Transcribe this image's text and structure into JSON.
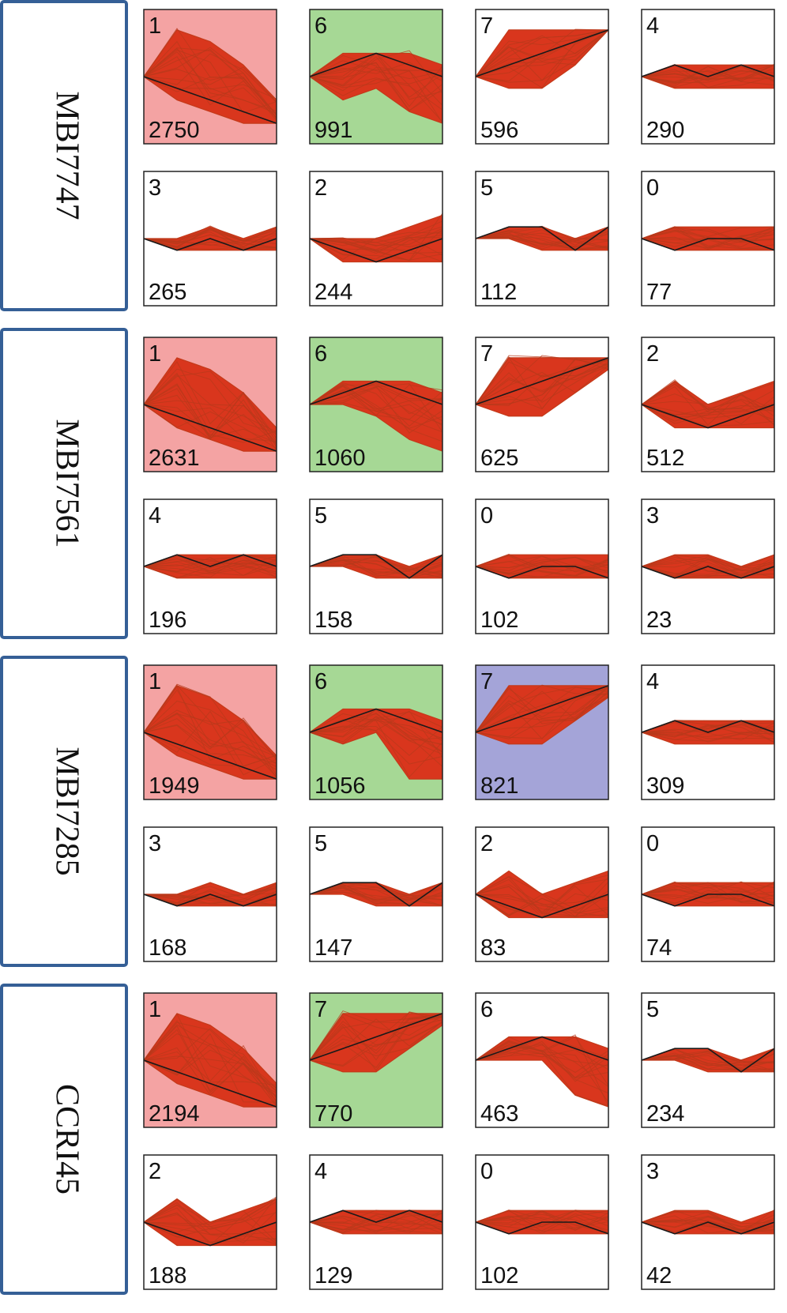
{
  "chart_data": {
    "type": "line",
    "description_note": "",
    "colors": {
      "profile": "#d9361d",
      "profile_line": "#c43a1a",
      "model_line": "#1a1a1a",
      "panel_border": "#222222",
      "group_border": "#355f96",
      "highlight_red": "#f4a3a3",
      "highlight_green": "#a6d895",
      "highlight_blue": "#a4a4d8",
      "background": "#ffffff"
    },
    "groups": [
      {
        "label": "MBI7747",
        "panels": [
          {
            "profile_id": "1",
            "gene_count": "2750",
            "highlight": "red",
            "model": [
              0,
              -1,
              -2,
              -3,
              -4
            ],
            "band_top": [
              0,
              4,
              3,
              1,
              -2
            ],
            "band_bottom": [
              0,
              -2,
              -3,
              -4,
              -4
            ]
          },
          {
            "profile_id": "6",
            "gene_count": "991",
            "highlight": "green",
            "model": [
              0,
              1,
              2,
              1,
              0
            ],
            "band_top": [
              0,
              2,
              2,
              2,
              1
            ],
            "band_bottom": [
              0,
              -2,
              -1,
              -3,
              -4
            ]
          },
          {
            "profile_id": "7",
            "gene_count": "596",
            "highlight": "none",
            "model": [
              0,
              1,
              2,
              3,
              4
            ],
            "band_top": [
              0,
              4,
              4,
              4,
              4
            ],
            "band_bottom": [
              0,
              -1,
              -1,
              1,
              4
            ]
          },
          {
            "profile_id": "4",
            "gene_count": "290",
            "highlight": "none",
            "model": [
              0,
              1,
              0,
              1,
              0
            ],
            "band_top": [
              0,
              1,
              1,
              1,
              1
            ],
            "band_bottom": [
              0,
              -1,
              -1,
              -1,
              -1
            ]
          },
          {
            "profile_id": "3",
            "gene_count": "265",
            "highlight": "none",
            "model": [
              0,
              -1,
              0,
              -1,
              0
            ],
            "band_top": [
              0,
              0,
              1,
              0,
              1
            ],
            "band_bottom": [
              0,
              -1,
              -1,
              -1,
              -1
            ]
          },
          {
            "profile_id": "2",
            "gene_count": "244",
            "highlight": "none",
            "model": [
              0,
              -1,
              -2,
              -1,
              0
            ],
            "band_top": [
              0,
              0,
              0,
              1,
              2
            ],
            "band_bottom": [
              0,
              -2,
              -2,
              -2,
              -2
            ]
          },
          {
            "profile_id": "5",
            "gene_count": "112",
            "highlight": "none",
            "model": [
              0,
              1,
              1,
              -1,
              1
            ],
            "band_top": [
              0,
              1,
              1,
              0,
              1
            ],
            "band_bottom": [
              0,
              0,
              -1,
              -1,
              -1
            ]
          },
          {
            "profile_id": "0",
            "gene_count": "77",
            "highlight": "none",
            "model": [
              0,
              -1,
              0,
              0,
              -1
            ],
            "band_top": [
              0,
              1,
              1,
              1,
              1
            ],
            "band_bottom": [
              0,
              -1,
              -1,
              -1,
              -1
            ]
          }
        ]
      },
      {
        "label": "MBI7561",
        "panels": [
          {
            "profile_id": "1",
            "gene_count": "2631",
            "highlight": "red",
            "model": [
              0,
              -1,
              -2,
              -3,
              -4
            ],
            "band_top": [
              0,
              4,
              3,
              1,
              -2
            ],
            "band_bottom": [
              0,
              -2,
              -3,
              -4,
              -4
            ]
          },
          {
            "profile_id": "6",
            "gene_count": "1060",
            "highlight": "green",
            "model": [
              0,
              1,
              2,
              1,
              0
            ],
            "band_top": [
              0,
              2,
              2,
              2,
              1
            ],
            "band_bottom": [
              0,
              0,
              -1,
              -3,
              -4
            ]
          },
          {
            "profile_id": "7",
            "gene_count": "625",
            "highlight": "none",
            "model": [
              0,
              1,
              2,
              3,
              4
            ],
            "band_top": [
              0,
              4,
              4,
              4,
              4
            ],
            "band_bottom": [
              0,
              -1,
              -1,
              1,
              3
            ]
          },
          {
            "profile_id": "2",
            "gene_count": "512",
            "highlight": "none",
            "model": [
              0,
              -1,
              -2,
              -1,
              0
            ],
            "band_top": [
              0,
              2,
              0,
              1,
              2
            ],
            "band_bottom": [
              0,
              -2,
              -2,
              -2,
              -2
            ]
          },
          {
            "profile_id": "4",
            "gene_count": "196",
            "highlight": "none",
            "model": [
              0,
              1,
              0,
              1,
              0
            ],
            "band_top": [
              0,
              1,
              1,
              1,
              1
            ],
            "band_bottom": [
              0,
              -1,
              -1,
              -1,
              -1
            ]
          },
          {
            "profile_id": "5",
            "gene_count": "158",
            "highlight": "none",
            "model": [
              0,
              1,
              1,
              -1,
              1
            ],
            "band_top": [
              0,
              1,
              1,
              0,
              1
            ],
            "band_bottom": [
              0,
              0,
              -1,
              -1,
              -1
            ]
          },
          {
            "profile_id": "0",
            "gene_count": "102",
            "highlight": "none",
            "model": [
              0,
              -1,
              0,
              0,
              -1
            ],
            "band_top": [
              0,
              1,
              1,
              1,
              1
            ],
            "band_bottom": [
              0,
              -1,
              -1,
              -1,
              -1
            ]
          },
          {
            "profile_id": "3",
            "gene_count": "23",
            "highlight": "none",
            "model": [
              0,
              -1,
              0,
              -1,
              0
            ],
            "band_top": [
              0,
              1,
              1,
              0,
              1
            ],
            "band_bottom": [
              0,
              -1,
              -1,
              -1,
              -1
            ]
          }
        ]
      },
      {
        "label": "MBI7285",
        "panels": [
          {
            "profile_id": "1",
            "gene_count": "1949",
            "highlight": "red",
            "model": [
              0,
              -1,
              -2,
              -3,
              -4
            ],
            "band_top": [
              0,
              4,
              3,
              1,
              -2
            ],
            "band_bottom": [
              0,
              -2,
              -3,
              -4,
              -4
            ]
          },
          {
            "profile_id": "6",
            "gene_count": "1056",
            "highlight": "green",
            "model": [
              0,
              1,
              2,
              1,
              0
            ],
            "band_top": [
              0,
              2,
              2,
              2,
              1
            ],
            "band_bottom": [
              0,
              -1,
              0,
              -4,
              -4
            ]
          },
          {
            "profile_id": "7",
            "gene_count": "821",
            "highlight": "blue",
            "model": [
              0,
              1,
              2,
              3,
              4
            ],
            "band_top": [
              0,
              4,
              4,
              4,
              4
            ],
            "band_bottom": [
              0,
              -1,
              -1,
              1,
              3
            ]
          },
          {
            "profile_id": "4",
            "gene_count": "309",
            "highlight": "none",
            "model": [
              0,
              1,
              0,
              1,
              0
            ],
            "band_top": [
              0,
              1,
              1,
              1,
              1
            ],
            "band_bottom": [
              0,
              -1,
              -1,
              -1,
              -1
            ]
          },
          {
            "profile_id": "3",
            "gene_count": "168",
            "highlight": "none",
            "model": [
              0,
              -1,
              0,
              -1,
              0
            ],
            "band_top": [
              0,
              0,
              1,
              0,
              1
            ],
            "band_bottom": [
              0,
              -1,
              -1,
              -1,
              -1
            ]
          },
          {
            "profile_id": "5",
            "gene_count": "147",
            "highlight": "none",
            "model": [
              0,
              1,
              1,
              -1,
              1
            ],
            "band_top": [
              0,
              1,
              1,
              0,
              1
            ],
            "band_bottom": [
              0,
              0,
              -1,
              -1,
              -1
            ]
          },
          {
            "profile_id": "2",
            "gene_count": "83",
            "highlight": "none",
            "model": [
              0,
              -1,
              -2,
              -1,
              0
            ],
            "band_top": [
              0,
              2,
              0,
              1,
              2
            ],
            "band_bottom": [
              0,
              -2,
              -2,
              -2,
              -2
            ]
          },
          {
            "profile_id": "0",
            "gene_count": "74",
            "highlight": "none",
            "model": [
              0,
              -1,
              0,
              0,
              -1
            ],
            "band_top": [
              0,
              1,
              1,
              1,
              1
            ],
            "band_bottom": [
              0,
              -1,
              -1,
              -1,
              -1
            ]
          }
        ]
      },
      {
        "label": "CCRI45",
        "panels": [
          {
            "profile_id": "1",
            "gene_count": "2194",
            "highlight": "red",
            "model": [
              0,
              -1,
              -2,
              -3,
              -4
            ],
            "band_top": [
              0,
              4,
              3,
              1,
              -2
            ],
            "band_bottom": [
              0,
              -2,
              -3,
              -4,
              -4
            ]
          },
          {
            "profile_id": "7",
            "gene_count": "770",
            "highlight": "green",
            "model": [
              0,
              1,
              2,
              3,
              4
            ],
            "band_top": [
              0,
              4,
              4,
              4,
              4
            ],
            "band_bottom": [
              0,
              -1,
              -1,
              1,
              3
            ]
          },
          {
            "profile_id": "6",
            "gene_count": "463",
            "highlight": "none",
            "model": [
              0,
              1,
              2,
              1,
              0
            ],
            "band_top": [
              0,
              2,
              2,
              2,
              1
            ],
            "band_bottom": [
              0,
              0,
              0,
              -3,
              -4
            ]
          },
          {
            "profile_id": "5",
            "gene_count": "234",
            "highlight": "none",
            "model": [
              0,
              1,
              1,
              -1,
              1
            ],
            "band_top": [
              0,
              1,
              1,
              0,
              1
            ],
            "band_bottom": [
              0,
              0,
              -1,
              -1,
              -1
            ]
          },
          {
            "profile_id": "2",
            "gene_count": "188",
            "highlight": "none",
            "model": [
              0,
              -1,
              -2,
              -1,
              0
            ],
            "band_top": [
              0,
              2,
              0,
              1,
              2
            ],
            "band_bottom": [
              0,
              -2,
              -2,
              -2,
              -2
            ]
          },
          {
            "profile_id": "4",
            "gene_count": "129",
            "highlight": "none",
            "model": [
              0,
              1,
              0,
              1,
              0
            ],
            "band_top": [
              0,
              1,
              1,
              1,
              1
            ],
            "band_bottom": [
              0,
              -1,
              -1,
              -1,
              -1
            ]
          },
          {
            "profile_id": "0",
            "gene_count": "102",
            "highlight": "none",
            "model": [
              0,
              -1,
              0,
              0,
              -1
            ],
            "band_top": [
              0,
              1,
              1,
              1,
              1
            ],
            "band_bottom": [
              0,
              -1,
              -1,
              -1,
              -1
            ]
          },
          {
            "profile_id": "3",
            "gene_count": "42",
            "highlight": "none",
            "model": [
              0,
              -1,
              0,
              -1,
              0
            ],
            "band_top": [
              0,
              1,
              1,
              0,
              1
            ],
            "band_bottom": [
              0,
              -1,
              -1,
              -1,
              -1
            ]
          }
        ]
      }
    ]
  }
}
